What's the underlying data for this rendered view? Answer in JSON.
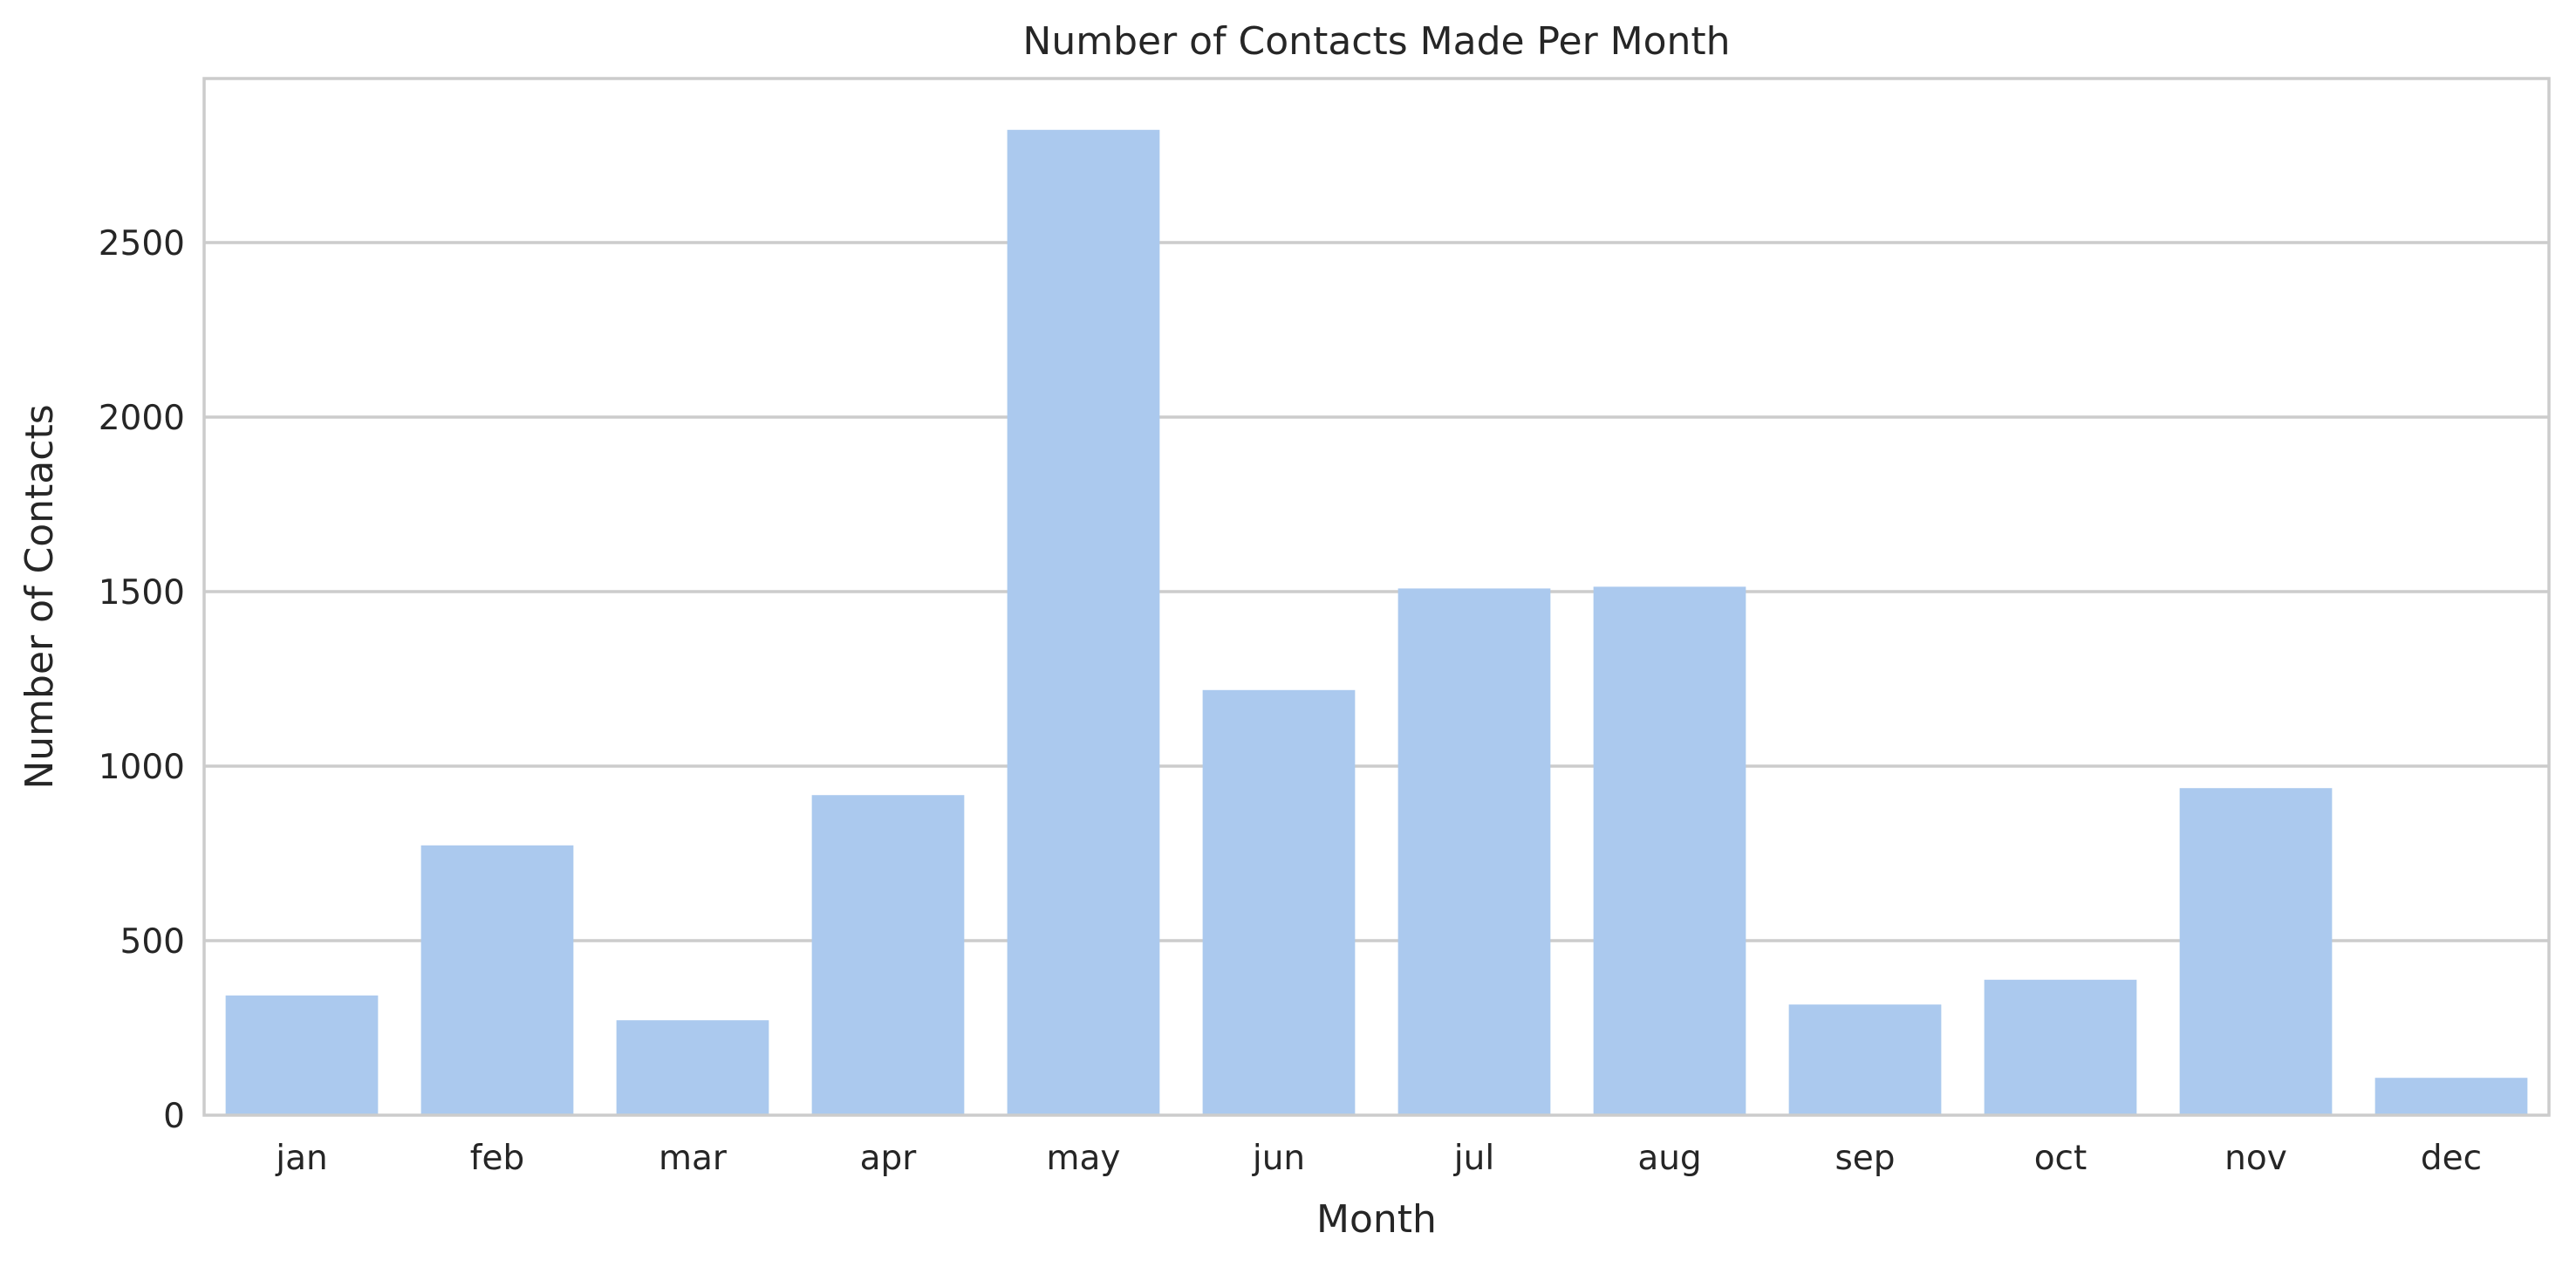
{
  "chart_data": {
    "type": "bar",
    "title": "Number of Contacts Made Per Month",
    "xlabel": "Month",
    "ylabel": "Number of Contacts",
    "categories": [
      "jan",
      "feb",
      "mar",
      "apr",
      "may",
      "jun",
      "jul",
      "aug",
      "sep",
      "oct",
      "nov",
      "dec"
    ],
    "values": [
      343,
      773,
      272,
      917,
      2823,
      1218,
      1509,
      1514,
      317,
      388,
      937,
      107
    ],
    "ylim": [
      0,
      2970
    ],
    "yticks": [
      0,
      500,
      1000,
      1500,
      2000,
      2500
    ],
    "grid": true,
    "legend": "none",
    "bar_color": "#abc9ee",
    "grid_color": "#cccccc",
    "text_color": "#262626"
  }
}
